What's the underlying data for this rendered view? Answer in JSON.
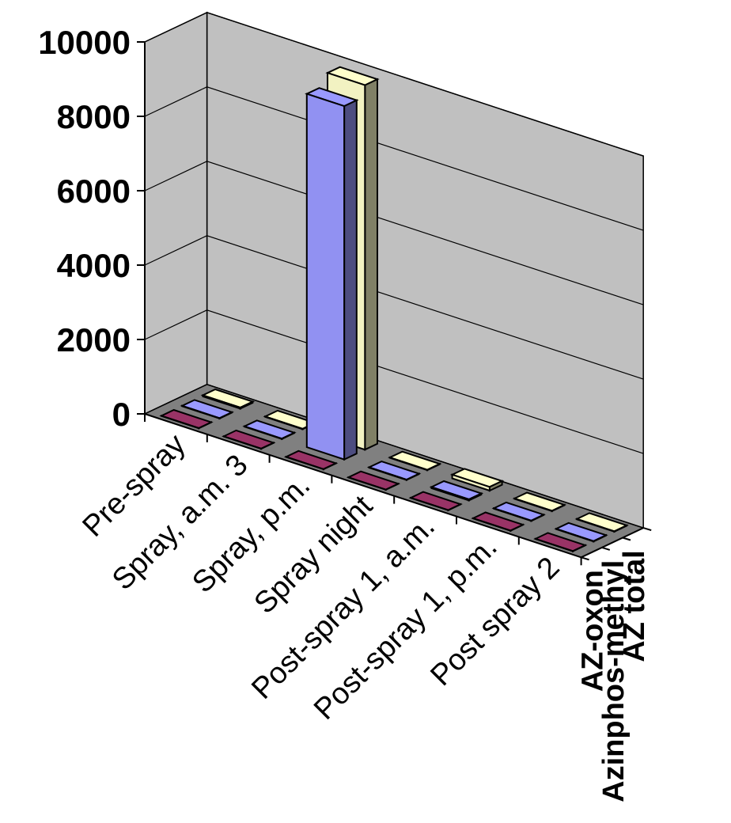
{
  "chart_data": {
    "type": "bar",
    "chart_style": "3d-column",
    "categories": [
      "Pre-spray",
      "Spray, a.m. 3",
      "Spray, p.m.",
      "Spray night",
      "Post-spray 1, a.m.",
      "Post-spray 1, p.m.",
      "Post spray 2"
    ],
    "y_ticks": [
      "0",
      "2000",
      "4000",
      "6000",
      "8000",
      "10000"
    ],
    "ylim": [
      0,
      10000
    ],
    "grid": true,
    "legend": "none",
    "series": [
      {
        "name": "AZ-oxon",
        "color": "#993366",
        "values": [
          5,
          5,
          5,
          5,
          5,
          5,
          5
        ]
      },
      {
        "name": "Azinphos-methyl",
        "color": "#9999ff",
        "values": [
          10,
          10,
          9500,
          10,
          30,
          10,
          10
        ]
      },
      {
        "name": "AZ total",
        "color": "#ffffcc",
        "values": [
          30,
          10,
          9800,
          10,
          100,
          10,
          10
        ]
      }
    ]
  }
}
